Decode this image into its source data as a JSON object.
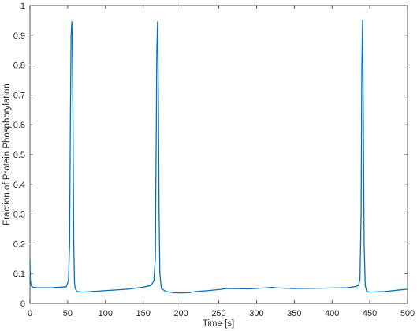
{
  "chart_data": {
    "type": "line",
    "title": "",
    "xlabel": "Time [s]",
    "ylabel": "Fraction of Protein Phosphorylation",
    "xlim": [
      0,
      500
    ],
    "ylim": [
      0,
      1
    ],
    "xticks": [
      0,
      50,
      100,
      150,
      200,
      250,
      300,
      350,
      400,
      450,
      500
    ],
    "yticks": [
      0,
      0.1,
      0.2,
      0.3,
      0.4,
      0.5,
      0.6,
      0.7,
      0.8,
      0.9,
      1
    ],
    "xtick_labels": [
      "0",
      "50",
      "100",
      "150",
      "200",
      "250",
      "300",
      "350",
      "400",
      "450",
      "500"
    ],
    "ytick_labels": [
      "0",
      "0.1",
      "0.2",
      "0.3",
      "0.4",
      "0.5",
      "0.6",
      "0.7",
      "0.8",
      "0.9",
      "1"
    ],
    "grid": false,
    "line_color": "#0072BD",
    "series": [
      {
        "x": [
          0,
          0.5,
          1.5,
          3,
          10,
          30,
          48,
          51,
          52.5,
          53.5,
          54.5,
          55.5,
          56,
          57,
          58,
          59,
          60,
          62,
          70,
          100,
          130,
          150,
          160,
          164,
          166,
          167,
          168,
          169,
          170,
          171,
          172,
          174,
          180,
          190,
          200,
          210,
          220,
          240,
          255,
          260,
          270,
          290,
          310,
          320,
          330,
          350,
          380,
          400,
          420,
          430,
          435,
          437,
          438.5,
          439.5,
          440.5,
          441.5,
          442.5,
          444,
          446,
          450,
          470,
          500
        ],
        "y": [
          0.145,
          0.08,
          0.06,
          0.055,
          0.053,
          0.053,
          0.056,
          0.075,
          0.2,
          0.6,
          0.9,
          0.945,
          0.9,
          0.6,
          0.2,
          0.07,
          0.05,
          0.04,
          0.038,
          0.043,
          0.048,
          0.055,
          0.06,
          0.075,
          0.15,
          0.5,
          0.85,
          0.945,
          0.7,
          0.3,
          0.1,
          0.05,
          0.04,
          0.036,
          0.035,
          0.036,
          0.04,
          0.044,
          0.048,
          0.05,
          0.05,
          0.049,
          0.052,
          0.054,
          0.052,
          0.05,
          0.051,
          0.052,
          0.053,
          0.056,
          0.06,
          0.08,
          0.3,
          0.8,
          0.95,
          0.6,
          0.2,
          0.06,
          0.04,
          0.038,
          0.04,
          0.048
        ]
      }
    ]
  }
}
